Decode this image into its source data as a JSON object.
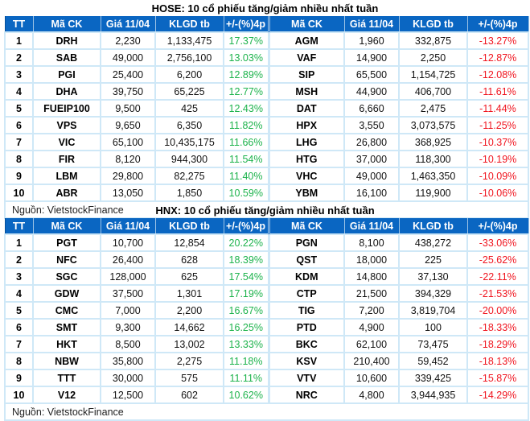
{
  "tables": [
    {
      "title": "HOSE: 10 cổ phiếu tăng/giảm nhiều nhất tuần",
      "headers": [
        "TT",
        "Mã CK",
        "Giá 11/04",
        "KLGD tb",
        "+/-(%)4p",
        "Mã CK",
        "Giá 11/04",
        "KLGD tb",
        "+/-(%)4p"
      ],
      "rows": [
        {
          "tt": "1",
          "up_code": "DRH",
          "up_price": "2,230",
          "up_vol": "1,133,475",
          "up_pct": "17.37%",
          "down_code": "AGM",
          "down_price": "1,960",
          "down_vol": "332,875",
          "down_pct": "-13.27%"
        },
        {
          "tt": "2",
          "up_code": "SAB",
          "up_price": "49,000",
          "up_vol": "2,756,100",
          "up_pct": "13.03%",
          "down_code": "VAF",
          "down_price": "14,900",
          "down_vol": "2,250",
          "down_pct": "-12.87%"
        },
        {
          "tt": "3",
          "up_code": "PGI",
          "up_price": "25,400",
          "up_vol": "6,200",
          "up_pct": "12.89%",
          "down_code": "SIP",
          "down_price": "65,500",
          "down_vol": "1,154,725",
          "down_pct": "-12.08%"
        },
        {
          "tt": "4",
          "up_code": "DHA",
          "up_price": "39,750",
          "up_vol": "65,225",
          "up_pct": "12.77%",
          "down_code": "MSH",
          "down_price": "44,900",
          "down_vol": "406,700",
          "down_pct": "-11.61%"
        },
        {
          "tt": "5",
          "up_code": "FUEIP100",
          "up_price": "9,500",
          "up_vol": "425",
          "up_pct": "12.43%",
          "down_code": "DAT",
          "down_price": "6,660",
          "down_vol": "2,475",
          "down_pct": "-11.44%"
        },
        {
          "tt": "6",
          "up_code": "VPS",
          "up_price": "9,650",
          "up_vol": "6,350",
          "up_pct": "11.82%",
          "down_code": "HPX",
          "down_price": "3,550",
          "down_vol": "3,073,575",
          "down_pct": "-11.25%"
        },
        {
          "tt": "7",
          "up_code": "VIC",
          "up_price": "65,100",
          "up_vol": "10,435,175",
          "up_pct": "11.66%",
          "down_code": "LHG",
          "down_price": "26,800",
          "down_vol": "368,925",
          "down_pct": "-10.37%"
        },
        {
          "tt": "8",
          "up_code": "FIR",
          "up_price": "8,120",
          "up_vol": "944,300",
          "up_pct": "11.54%",
          "down_code": "HTG",
          "down_price": "37,000",
          "down_vol": "118,300",
          "down_pct": "-10.19%"
        },
        {
          "tt": "9",
          "up_code": "LBM",
          "up_price": "29,800",
          "up_vol": "82,275",
          "up_pct": "11.40%",
          "down_code": "VHC",
          "down_price": "49,000",
          "down_vol": "1,463,350",
          "down_pct": "-10.09%"
        },
        {
          "tt": "10",
          "up_code": "ABR",
          "up_price": "13,050",
          "up_vol": "1,850",
          "up_pct": "10.59%",
          "down_code": "YBM",
          "down_price": "16,100",
          "down_vol": "119,900",
          "down_pct": "-10.06%"
        }
      ],
      "source": "Nguồn: VietstockFinance"
    },
    {
      "title": "HNX: 10 cổ phiếu tăng/giảm nhiều nhất tuần",
      "headers": [
        "TT",
        "Mã CK",
        "Giá 11/04",
        "KLGD tb",
        "+/-(%)4p",
        "Mã CK",
        "Giá 11/04",
        "KLGD tb",
        "+/-(%)4p"
      ],
      "rows": [
        {
          "tt": "1",
          "up_code": "PGT",
          "up_price": "10,700",
          "up_vol": "12,854",
          "up_pct": "20.22%",
          "down_code": "PGN",
          "down_price": "8,100",
          "down_vol": "438,272",
          "down_pct": "-33.06%"
        },
        {
          "tt": "2",
          "up_code": "NFC",
          "up_price": "26,400",
          "up_vol": "628",
          "up_pct": "18.39%",
          "down_code": "QST",
          "down_price": "18,000",
          "down_vol": "225",
          "down_pct": "-25.62%"
        },
        {
          "tt": "3",
          "up_code": "SGC",
          "up_price": "128,000",
          "up_vol": "625",
          "up_pct": "17.54%",
          "down_code": "KDM",
          "down_price": "14,800",
          "down_vol": "37,130",
          "down_pct": "-22.11%"
        },
        {
          "tt": "4",
          "up_code": "GDW",
          "up_price": "37,500",
          "up_vol": "1,301",
          "up_pct": "17.19%",
          "down_code": "CTP",
          "down_price": "21,500",
          "down_vol": "394,329",
          "down_pct": "-21.53%"
        },
        {
          "tt": "5",
          "up_code": "CMC",
          "up_price": "7,000",
          "up_vol": "2,200",
          "up_pct": "16.67%",
          "down_code": "TIG",
          "down_price": "7,200",
          "down_vol": "3,819,704",
          "down_pct": "-20.00%"
        },
        {
          "tt": "6",
          "up_code": "SMT",
          "up_price": "9,300",
          "up_vol": "14,662",
          "up_pct": "16.25%",
          "down_code": "PTD",
          "down_price": "4,900",
          "down_vol": "100",
          "down_pct": "-18.33%"
        },
        {
          "tt": "7",
          "up_code": "HKT",
          "up_price": "8,500",
          "up_vol": "13,002",
          "up_pct": "13.33%",
          "down_code": "BKC",
          "down_price": "62,100",
          "down_vol": "73,475",
          "down_pct": "-18.29%"
        },
        {
          "tt": "8",
          "up_code": "NBW",
          "up_price": "35,800",
          "up_vol": "2,275",
          "up_pct": "11.18%",
          "down_code": "KSV",
          "down_price": "210,400",
          "down_vol": "59,452",
          "down_pct": "-18.13%"
        },
        {
          "tt": "9",
          "up_code": "TTT",
          "up_price": "30,000",
          "up_vol": "575",
          "up_pct": "11.11%",
          "down_code": "VTV",
          "down_price": "10,600",
          "down_vol": "339,425",
          "down_pct": "-15.87%"
        },
        {
          "tt": "10",
          "up_code": "V12",
          "up_price": "12,500",
          "up_vol": "602",
          "up_pct": "10.62%",
          "down_code": "NRC",
          "down_price": "4,800",
          "down_vol": "3,944,935",
          "down_pct": "-14.29%"
        }
      ],
      "source": "Nguồn: VietstockFinance"
    }
  ],
  "colors": {
    "header_bg": "#0a66c2",
    "header_text": "#ffffff",
    "grid": "#cfe8f7",
    "up": "#1db34c",
    "down": "#f0141e"
  }
}
